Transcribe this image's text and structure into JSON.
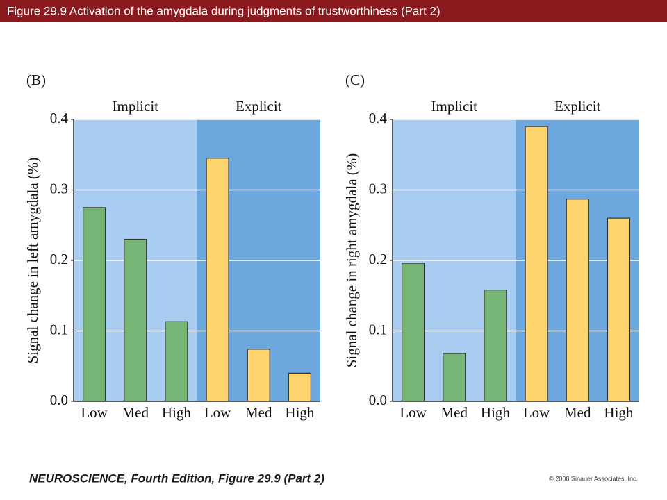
{
  "header": {
    "title": "Figure 29.9  Activation of the amygdala during judgments of trustworthiness (Part 2)"
  },
  "footer": {
    "book": "NEUROSCIENCE, Fourth Edition, Figure 29.9 (Part 2)",
    "copyright": "© 2008 Sinauer Associates, Inc."
  },
  "chart_data": [
    {
      "type": "bar",
      "panel": "(B)",
      "ylabel": "Signal change in left amygdala (%)",
      "groups": [
        {
          "name": "Implicit",
          "background": "#a9cdf0"
        },
        {
          "name": "Explicit",
          "background": "#6ca8de"
        }
      ],
      "categories": [
        "Low",
        "Med",
        "High",
        "Low",
        "Med",
        "High"
      ],
      "values": [
        0.275,
        0.23,
        0.113,
        0.345,
        0.074,
        0.04
      ],
      "colors": [
        "#77b577",
        "#77b577",
        "#77b577",
        "#fed46e",
        "#fed46e",
        "#fed46e"
      ],
      "ylim": [
        0,
        0.4
      ],
      "yticks": [
        {
          "value": 0,
          "label": "0.0"
        },
        0.1,
        0.2,
        0.3,
        0.4
      ],
      "grid": true
    },
    {
      "type": "bar",
      "panel": "(C)",
      "ylabel": "Signal change in right amygdala (%)",
      "groups": [
        {
          "name": "Implicit",
          "background": "#a9cdf0"
        },
        {
          "name": "Explicit",
          "background": "#6ca8de"
        }
      ],
      "categories": [
        "Low",
        "Med",
        "High",
        "Low",
        "Med",
        "High"
      ],
      "values": [
        0.196,
        0.068,
        0.158,
        0.39,
        0.287,
        0.26
      ],
      "colors": [
        "#77b577",
        "#77b577",
        "#77b577",
        "#fed46e",
        "#fed46e",
        "#fed46e"
      ],
      "ylim": [
        0,
        0.4
      ],
      "yticks": [
        {
          "value": 0,
          "label": "0.0"
        },
        0.1,
        0.2,
        0.3,
        0.4
      ],
      "grid": true
    }
  ]
}
